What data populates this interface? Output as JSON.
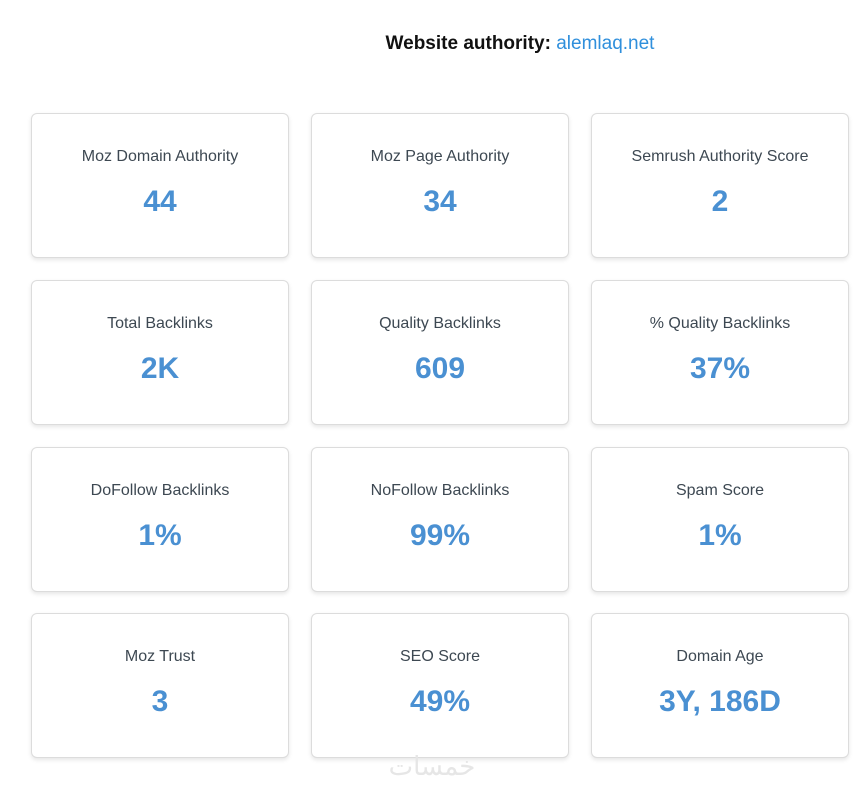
{
  "header": {
    "label": "Website authority:",
    "domain": "alemlaq.net"
  },
  "cards": [
    {
      "label": "Moz Domain Authority",
      "value": "44"
    },
    {
      "label": "Moz Page Authority",
      "value": "34"
    },
    {
      "label": "Semrush Authority Score",
      "value": "2"
    },
    {
      "label": "Total Backlinks",
      "value": "2K"
    },
    {
      "label": "Quality Backlinks",
      "value": "609"
    },
    {
      "label": "% Quality Backlinks",
      "value": "37%"
    },
    {
      "label": "DoFollow Backlinks",
      "value": "1%"
    },
    {
      "label": "NoFollow Backlinks",
      "value": "99%"
    },
    {
      "label": "Spam Score",
      "value": "1%"
    },
    {
      "label": "Moz Trust",
      "value": "3"
    },
    {
      "label": "SEO Score",
      "value": "49%"
    },
    {
      "label": "Domain Age",
      "value": "3Y, 186D"
    }
  ],
  "watermark": "خمسات"
}
